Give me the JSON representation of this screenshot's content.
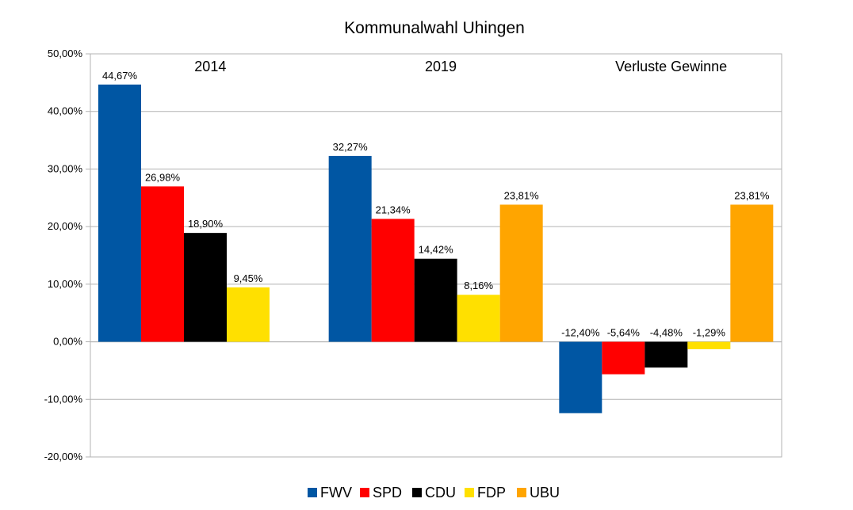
{
  "chart_data": {
    "type": "bar",
    "title": "Kommunalwahl  Uhingen",
    "categories": [
      "2014",
      "2019",
      "Verluste Gewinne"
    ],
    "series": [
      {
        "name": "FWV",
        "color": "#0056a3",
        "values": [
          44.67,
          32.27,
          -12.4
        ],
        "labels": [
          "44,67%",
          "32,27%",
          "-12,40%"
        ]
      },
      {
        "name": "SPD",
        "color": "#ff0000",
        "values": [
          26.98,
          21.34,
          -5.64
        ],
        "labels": [
          "26,98%",
          "21,34%",
          "-5,64%"
        ]
      },
      {
        "name": "CDU",
        "color": "#000000",
        "values": [
          18.9,
          14.42,
          -4.48
        ],
        "labels": [
          "18,90%",
          "14,42%",
          "-4,48%"
        ]
      },
      {
        "name": "FDP",
        "color": "#ffe000",
        "values": [
          9.45,
          8.16,
          -1.29
        ],
        "labels": [
          "9,45%",
          "8,16%",
          "-1,29%"
        ]
      },
      {
        "name": "UBU",
        "color": "#ffa500",
        "values": [
          null,
          23.81,
          23.81
        ],
        "labels": [
          "",
          "23,81%",
          "23,81%"
        ]
      }
    ],
    "yticks": [
      50,
      40,
      30,
      20,
      10,
      0,
      -10,
      -20
    ],
    "ytick_labels": [
      "50,00%",
      "40,00%",
      "30,00%",
      "20,00%",
      "10,00%",
      "0,00%",
      "-10,00%",
      "-20,00%"
    ],
    "ylim": [
      -20,
      50
    ],
    "grid": true,
    "legend_position": "bottom",
    "xlabel": "",
    "ylabel": ""
  }
}
